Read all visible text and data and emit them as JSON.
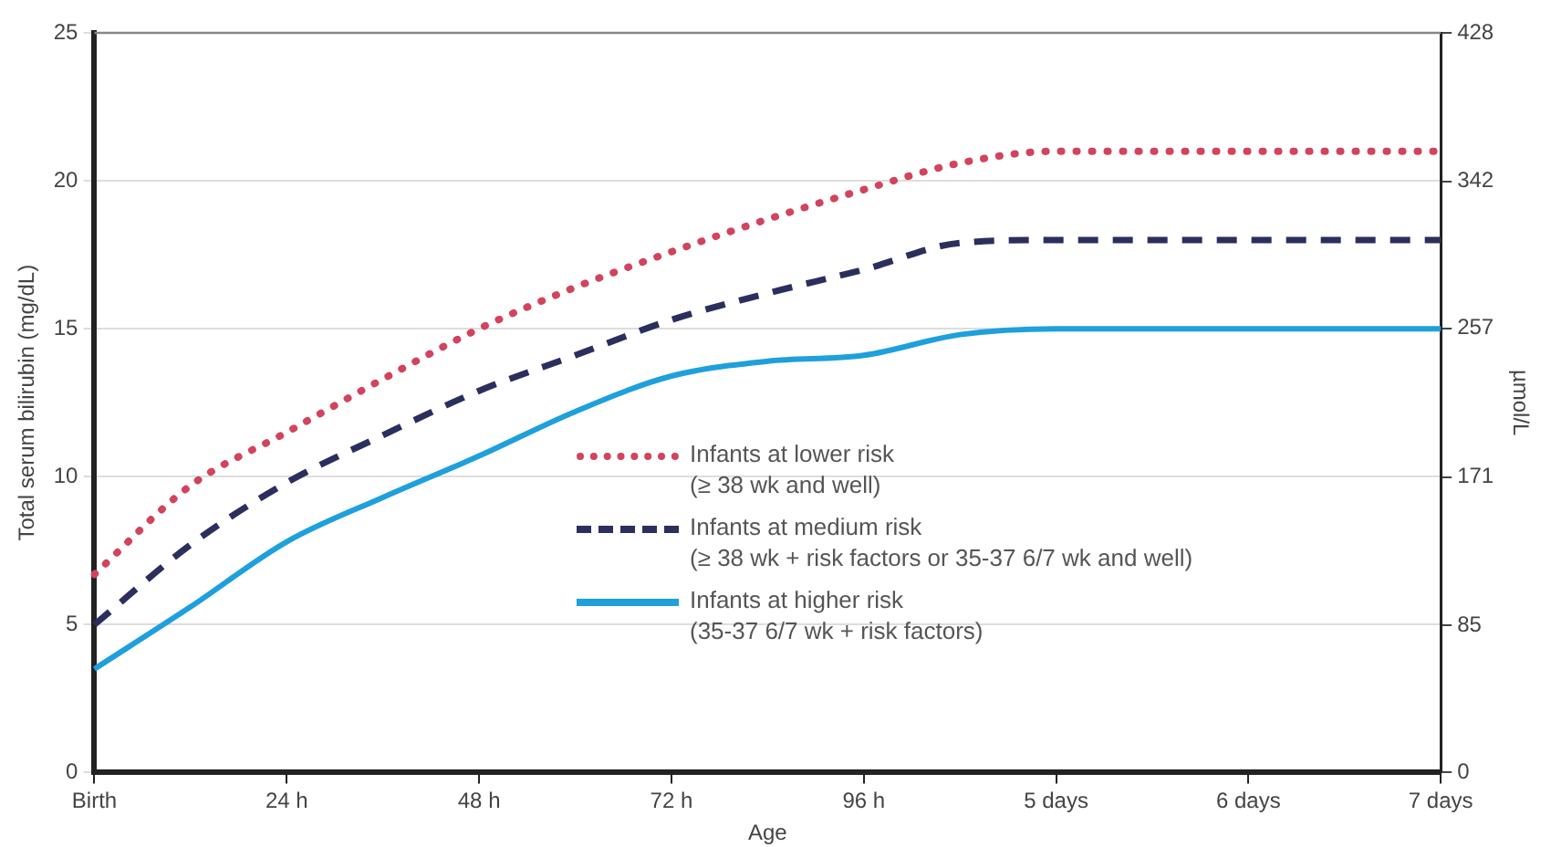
{
  "chart_data": {
    "type": "line",
    "xlabel": "Age",
    "ylabel": "Total serum bilirubin (mg/dL)",
    "y2label": "µmol/L",
    "categories": [
      "Birth",
      null,
      "24 h",
      null,
      "48 h",
      null,
      "72 h",
      null,
      "96 h",
      null,
      "5 days",
      null,
      "6 days",
      null,
      "7 days"
    ],
    "ylim": [
      0,
      25
    ],
    "yticks": [
      0,
      5,
      10,
      15,
      20,
      25
    ],
    "y2lim": [
      0,
      428
    ],
    "y2ticks": [
      0,
      85,
      171,
      257,
      342,
      428
    ],
    "grid": "y",
    "legend": "bottom right",
    "marker": "none",
    "series": [
      {
        "name": "Infants at lower risk (≥ 38 wk and well)",
        "color": "#d2435c",
        "line_style": "dotted",
        "values": [
          6.7,
          9.7,
          11.5,
          13.3,
          15.0,
          16.4,
          17.6,
          18.7,
          19.7,
          20.6,
          21.0,
          21.0,
          21.0,
          21.0,
          21.0
        ]
      },
      {
        "name": "Infants at medium risk (≥ 38 wk + risk factors or 35-37 6/7 wk and well)",
        "color": "#2b2f5e",
        "line_style": "dashed",
        "values": [
          5.0,
          7.7,
          9.8,
          11.4,
          12.9,
          14.1,
          15.3,
          16.2,
          17.0,
          17.9,
          18.0,
          18.0,
          18.0,
          18.0,
          18.0
        ]
      },
      {
        "name": "Infants at higher risk (35-37 6/7 wk + risk factors)",
        "color": "#1ea0dc",
        "line_style": "solid",
        "values": [
          3.5,
          5.6,
          7.8,
          9.3,
          10.7,
          12.2,
          13.4,
          13.9,
          14.1,
          14.8,
          15.0,
          15.0,
          15.0,
          15.0,
          15.0
        ]
      }
    ]
  }
}
